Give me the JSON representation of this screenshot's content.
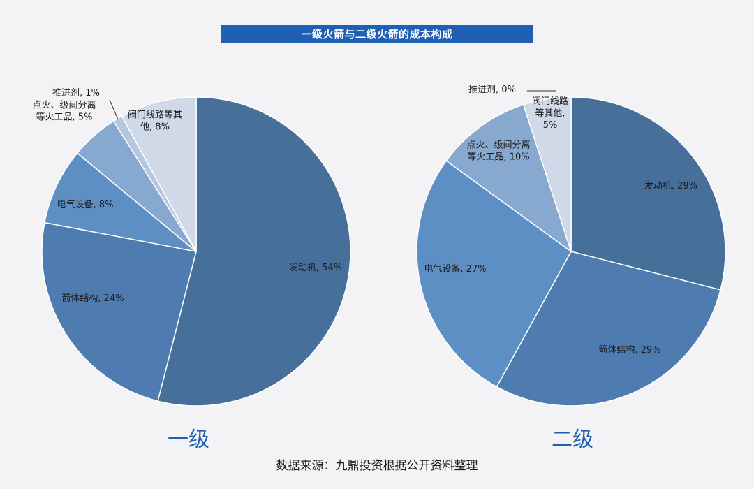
{
  "title": "一级火箭与二级火箭的成本构成",
  "source": "数据来源：九鼎投资根据公开资料整理",
  "colors": {
    "title_bg": "#1f5fb4",
    "engine": "#46709a",
    "body": "#4f7cb0",
    "electrical": "#5d8fc4",
    "ignition": "#87a8cf",
    "propellant": "#b5c7de",
    "valves": "#cfd9e8"
  },
  "chart_data": [
    {
      "type": "pie",
      "caption": "一级",
      "slices": [
        {
          "name": "发动机",
          "value": 54,
          "label": "发动机, 54%"
        },
        {
          "name": "箭体结构",
          "value": 24,
          "label": "箭体结构, 24%"
        },
        {
          "name": "电气设备",
          "value": 8,
          "label": "电气设备, 8%"
        },
        {
          "name": "点火、级间分离等火工品",
          "value": 5,
          "label": [
            "点火、级间分离",
            "等火工品, 5%"
          ]
        },
        {
          "name": "推进剂",
          "value": 1,
          "label": "推进剂, 1%"
        },
        {
          "name": "阀门线路等其他",
          "value": 8,
          "label": [
            "阀门线路等其",
            "他, 8%"
          ]
        }
      ]
    },
    {
      "type": "pie",
      "caption": "二级",
      "slices": [
        {
          "name": "发动机",
          "value": 29,
          "label": "发动机, 29%"
        },
        {
          "name": "箭体结构",
          "value": 29,
          "label": "箭体结构, 29%"
        },
        {
          "name": "电气设备",
          "value": 27,
          "label": "电气设备, 27%"
        },
        {
          "name": "点火、级间分离等火工品",
          "value": 10,
          "label": [
            "点火、级间分离",
            "等火工品, 10%"
          ]
        },
        {
          "name": "推进剂",
          "value": 0,
          "label": "推进剂, 0%"
        },
        {
          "name": "阀门线路等其他",
          "value": 5,
          "label": [
            "阀门线路",
            "等其他,",
            "5%"
          ]
        }
      ]
    }
  ]
}
